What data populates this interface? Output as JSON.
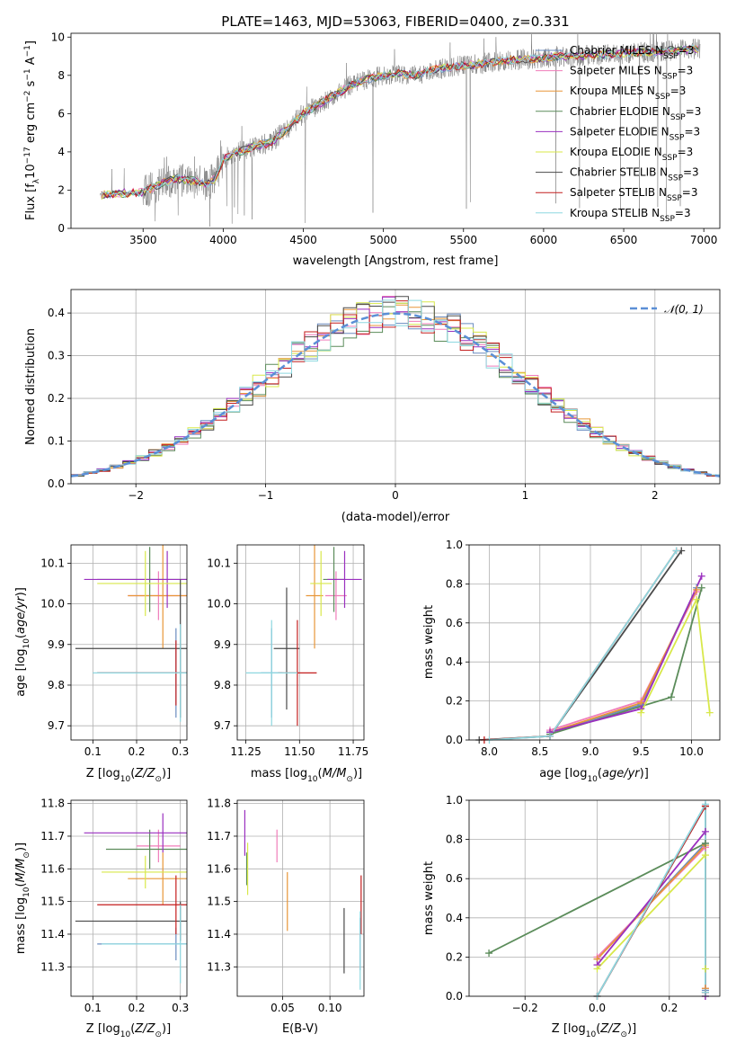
{
  "title": "PLATE=1463, MJD=53063, FIBERID=0400, z=0.331",
  "colors": {
    "Chabrier MILES": "#6a8cc0",
    "Salpeter MILES": "#f07dba",
    "Kroupa MILES": "#e89638",
    "Chabrier ELODIE": "#5b8c5a",
    "Salpeter ELODIE": "#9a2fbf",
    "Kroupa ELODIE": "#d8e84a",
    "Chabrier STELIB": "#4a4a4a",
    "Salpeter STELIB": "#c41e1e",
    "Kroupa STELIB": "#8ed8e0",
    "data": "#808080",
    "normal": "#5b8fd6"
  },
  "chart_data": [
    {
      "id": "spectrum",
      "type": "line",
      "xlabel": "wavelength [Angstrom, rest frame]",
      "ylabel": "Flux [f_λ10^-17 erg cm^-2 s^-1 A^-1]",
      "xlim": [
        3050,
        7100
      ],
      "ylim": [
        0,
        10.2
      ],
      "xticks": [
        3500,
        4000,
        4500,
        5000,
        5500,
        6000,
        6500,
        7000
      ],
      "yticks": [
        0,
        2,
        4,
        6,
        8,
        10
      ],
      "continuum": [
        [
          3230,
          1.7
        ],
        [
          3300,
          1.8
        ],
        [
          3400,
          1.85
        ],
        [
          3500,
          1.9
        ],
        [
          3600,
          2.3
        ],
        [
          3700,
          2.6
        ],
        [
          3800,
          2.5
        ],
        [
          3900,
          2.3
        ],
        [
          3950,
          2.6
        ],
        [
          4000,
          3.6
        ],
        [
          4100,
          4.0
        ],
        [
          4200,
          4.3
        ],
        [
          4300,
          4.5
        ],
        [
          4400,
          5.2
        ],
        [
          4500,
          6.0
        ],
        [
          4600,
          6.5
        ],
        [
          4700,
          7.0
        ],
        [
          4800,
          7.5
        ],
        [
          4900,
          7.8
        ],
        [
          5000,
          8.0
        ],
        [
          5100,
          8.1
        ],
        [
          5200,
          8.0
        ],
        [
          5300,
          8.3
        ],
        [
          5400,
          8.4
        ],
        [
          5500,
          8.5
        ],
        [
          5600,
          8.6
        ],
        [
          5700,
          8.7
        ],
        [
          5800,
          8.8
        ],
        [
          5900,
          8.85
        ],
        [
          6000,
          8.9
        ],
        [
          6100,
          9.0
        ],
        [
          6200,
          9.0
        ],
        [
          6300,
          9.05
        ],
        [
          6400,
          9.1
        ],
        [
          6500,
          9.15
        ],
        [
          6600,
          9.2
        ],
        [
          6700,
          9.2
        ],
        [
          6800,
          9.3
        ],
        [
          6900,
          9.35
        ],
        [
          6980,
          9.4
        ]
      ],
      "legend": [
        {
          "name": "Chabrier MILES",
          "sup": "N",
          "sub": "SSP",
          "eq": "=3"
        },
        {
          "name": "Salpeter MILES",
          "sup": "N",
          "sub": "SSP",
          "eq": "=3"
        },
        {
          "name": "Kroupa MILES",
          "sup": "N",
          "sub": "SSP",
          "eq": "=3"
        },
        {
          "name": "Chabrier ELODIE",
          "sup": "N",
          "sub": "SSP",
          "eq": "=3"
        },
        {
          "name": "Salpeter ELODIE",
          "sup": "N",
          "sub": "SSP",
          "eq": "=3"
        },
        {
          "name": "Kroupa ELODIE",
          "sup": "N",
          "sub": "SSP",
          "eq": "=3"
        },
        {
          "name": "Chabrier STELIB",
          "sup": "N",
          "sub": "SSP",
          "eq": "=3"
        },
        {
          "name": "Salpeter STELIB",
          "sup": "N",
          "sub": "SSP",
          "eq": "=3"
        },
        {
          "name": "Kroupa STELIB",
          "sup": "N",
          "sub": "SSP",
          "eq": "=3"
        }
      ]
    },
    {
      "id": "residuals",
      "type": "line",
      "xlabel": "(data-model)/error",
      "ylabel": "Normed distribution",
      "xlim": [
        -2.5,
        2.5
      ],
      "ylim": [
        0,
        0.455
      ],
      "xticks": [
        -2,
        -1,
        0,
        1,
        2
      ],
      "yticks": [
        0.0,
        0.1,
        0.2,
        0.3,
        0.4
      ],
      "legend": "𝒩(0, 1)",
      "bin_width": 0.1
    },
    {
      "id": "age_vs_Z",
      "type": "scatter",
      "xlabel": "Z [log10(Z/Z⊙)]",
      "ylabel": "age [log10(age/yr)]",
      "xlim": [
        0.05,
        0.315
      ],
      "ylim": [
        9.665,
        10.145
      ],
      "xticks": [
        0.1,
        0.2,
        0.3
      ],
      "yticks": [
        9.7,
        9.8,
        9.9,
        10.0,
        10.1
      ],
      "points": [
        {
          "model": "Chabrier MILES",
          "x": 0.29,
          "y": 9.83,
          "xerr": 0.18,
          "yerr": 0.11
        },
        {
          "model": "Salpeter MILES",
          "x": 0.25,
          "y": 10.02,
          "xerr": 0.07,
          "yerr": 0.06
        },
        {
          "model": "Kroupa MILES",
          "x": 0.26,
          "y": 10.02,
          "xerr": 0.08,
          "yerr": 0.13
        },
        {
          "model": "Chabrier ELODIE",
          "x": 0.23,
          "y": 10.06,
          "xerr": 0.12,
          "yerr": 0.08
        },
        {
          "model": "Salpeter ELODIE",
          "x": 0.27,
          "y": 10.06,
          "xerr": 0.19,
          "yerr": 0.07
        },
        {
          "model": "Kroupa ELODIE",
          "x": 0.22,
          "y": 10.05,
          "xerr": 0.11,
          "yerr": 0.08
        },
        {
          "model": "Chabrier STELIB",
          "x": 0.3,
          "y": 9.89,
          "xerr": 0.24,
          "yerr": 0.17
        },
        {
          "model": "Salpeter STELIB",
          "x": 0.29,
          "y": 9.83,
          "xerr": 0.18,
          "yerr": 0.08
        },
        {
          "model": "Kroupa STELIB",
          "x": 0.3,
          "y": 9.83,
          "xerr": 0.2,
          "yerr": 0.12
        }
      ]
    },
    {
      "id": "age_vs_mass",
      "type": "scatter",
      "xlabel": "mass [log10(M/M⊙)]",
      "ylabel": "",
      "xlim": [
        11.21,
        11.8
      ],
      "ylim": [
        9.665,
        10.145
      ],
      "xticks": [
        11.25,
        11.5,
        11.75
      ],
      "yticks": [
        9.7,
        9.8,
        9.9,
        10.0,
        10.1
      ],
      "points": [
        {
          "model": "Chabrier MILES",
          "x": 11.37,
          "y": 9.83,
          "xerr": 0.05,
          "yerr": 0.11
        },
        {
          "model": "Salpeter MILES",
          "x": 11.67,
          "y": 10.02,
          "xerr": 0.05,
          "yerr": 0.06
        },
        {
          "model": "Kroupa MILES",
          "x": 11.57,
          "y": 10.02,
          "xerr": 0.04,
          "yerr": 0.13
        },
        {
          "model": "Chabrier ELODIE",
          "x": 11.66,
          "y": 10.06,
          "xerr": 0.05,
          "yerr": 0.08
        },
        {
          "model": "Salpeter ELODIE",
          "x": 11.71,
          "y": 10.06,
          "xerr": 0.08,
          "yerr": 0.07
        },
        {
          "model": "Kroupa ELODIE",
          "x": 11.6,
          "y": 10.05,
          "xerr": 0.05,
          "yerr": 0.08
        },
        {
          "model": "Chabrier STELIB",
          "x": 11.44,
          "y": 9.89,
          "xerr": 0.06,
          "yerr": 0.15
        },
        {
          "model": "Salpeter STELIB",
          "x": 11.49,
          "y": 9.83,
          "xerr": 0.09,
          "yerr": 0.13
        },
        {
          "model": "Kroupa STELIB",
          "x": 11.37,
          "y": 9.83,
          "xerr": 0.12,
          "yerr": 0.13
        }
      ]
    },
    {
      "id": "mass_weight_vs_age",
      "type": "line",
      "xlabel": "age [log10(age/yr)]",
      "ylabel": "mass weight",
      "xlim": [
        7.8,
        10.28
      ],
      "ylim": [
        0,
        1.0
      ],
      "xticks": [
        8.0,
        8.5,
        9.0,
        9.5,
        10.0
      ],
      "yticks": [
        0.0,
        0.2,
        0.4,
        0.6,
        0.8,
        1.0
      ],
      "series": [
        {
          "model": "Chabrier MILES",
          "x": [
            8.6,
            9.5,
            10.05
          ],
          "y": [
            0.04,
            0.18,
            0.78
          ]
        },
        {
          "model": "Salpeter MILES",
          "x": [
            8.6,
            9.5,
            10.05
          ],
          "y": [
            0.05,
            0.2,
            0.76
          ]
        },
        {
          "model": "Kroupa MILES",
          "x": [
            8.6,
            9.5,
            10.05
          ],
          "y": [
            0.04,
            0.19,
            0.77
          ]
        },
        {
          "model": "Chabrier ELODIE",
          "x": [
            8.6,
            9.8,
            10.1
          ],
          "y": [
            0.03,
            0.22,
            0.78
          ]
        },
        {
          "model": "Salpeter ELODIE",
          "x": [
            8.6,
            9.5,
            10.1
          ],
          "y": [
            0.04,
            0.16,
            0.84
          ]
        },
        {
          "model": "Kroupa ELODIE",
          "x": [
            9.5,
            10.05,
            10.18
          ],
          "y": [
            0.14,
            0.72,
            0.14
          ]
        },
        {
          "model": "Chabrier STELIB",
          "x": [
            7.9,
            8.6,
            9.9
          ],
          "y": [
            0.0,
            0.02,
            0.97
          ]
        },
        {
          "model": "Salpeter STELIB",
          "x": [
            7.95,
            8.6,
            9.85
          ],
          "y": [
            0.0,
            0.02,
            0.97
          ]
        },
        {
          "model": "Kroupa STELIB",
          "x": [
            8.0,
            8.6,
            9.85
          ],
          "y": [
            0.0,
            0.02,
            0.97
          ]
        }
      ]
    },
    {
      "id": "mass_vs_Z",
      "type": "scatter",
      "xlabel": "Z [log10(Z/Z⊙)]",
      "ylabel": "mass [log10(M/M⊙)]",
      "xlim": [
        0.05,
        0.315
      ],
      "ylim": [
        11.21,
        11.81
      ],
      "xticks": [
        0.1,
        0.2,
        0.3
      ],
      "yticks": [
        11.3,
        11.4,
        11.5,
        11.6,
        11.7,
        11.8
      ],
      "points": [
        {
          "model": "Chabrier MILES",
          "x": 0.29,
          "y": 11.37,
          "xerr": 0.18,
          "yerr": 0.05
        },
        {
          "model": "Salpeter MILES",
          "x": 0.25,
          "y": 11.67,
          "xerr": 0.05,
          "yerr": 0.05
        },
        {
          "model": "Kroupa MILES",
          "x": 0.26,
          "y": 11.57,
          "xerr": 0.08,
          "yerr": 0.08
        },
        {
          "model": "Chabrier ELODIE",
          "x": 0.23,
          "y": 11.66,
          "xerr": 0.1,
          "yerr": 0.06
        },
        {
          "model": "Salpeter ELODIE",
          "x": 0.26,
          "y": 11.71,
          "xerr": 0.18,
          "yerr": 0.06
        },
        {
          "model": "Kroupa ELODIE",
          "x": 0.22,
          "y": 11.59,
          "xerr": 0.1,
          "yerr": 0.05
        },
        {
          "model": "Chabrier STELIB",
          "x": 0.3,
          "y": 11.44,
          "xerr": 0.24,
          "yerr": 0.06
        },
        {
          "model": "Salpeter STELIB",
          "x": 0.29,
          "y": 11.49,
          "xerr": 0.18,
          "yerr": 0.09
        },
        {
          "model": "Kroupa STELIB",
          "x": 0.3,
          "y": 11.37,
          "xerr": 0.18,
          "yerr": 0.12
        }
      ]
    },
    {
      "id": "mass_vs_ebv",
      "type": "scatter",
      "xlabel": "E(B-V)",
      "ylabel": "",
      "xlim": [
        0.002,
        0.136
      ],
      "ylim": [
        11.21,
        11.81
      ],
      "xticks": [
        0.05,
        0.1
      ],
      "yticks": [
        11.3,
        11.4,
        11.5,
        11.6,
        11.7,
        11.8
      ],
      "points": [
        {
          "model": "Chabrier MILES",
          "x": 0.132,
          "y": 11.37,
          "yerr": 0.08
        },
        {
          "model": "Salpeter MILES",
          "x": 0.044,
          "y": 11.67,
          "yerr": 0.05
        },
        {
          "model": "Kroupa MILES",
          "x": 0.055,
          "y": 11.5,
          "yerr": 0.09
        },
        {
          "model": "Chabrier ELODIE",
          "x": 0.012,
          "y": 11.6,
          "yerr": 0.05
        },
        {
          "model": "Salpeter ELODIE",
          "x": 0.01,
          "y": 11.71,
          "yerr": 0.07
        },
        {
          "model": "Kroupa ELODIE",
          "x": 0.013,
          "y": 11.6,
          "yerr": 0.08
        },
        {
          "model": "Chabrier STELIB",
          "x": 0.115,
          "y": 11.38,
          "yerr": 0.1
        },
        {
          "model": "Salpeter STELIB",
          "x": 0.133,
          "y": 11.49,
          "yerr": 0.09
        },
        {
          "model": "Kroupa STELIB",
          "x": 0.132,
          "y": 11.35,
          "yerr": 0.12
        }
      ]
    },
    {
      "id": "mass_weight_vs_Z",
      "type": "line",
      "xlabel": "Z [log10(Z/Z⊙)]",
      "ylabel": "mass weight",
      "xlim": [
        -0.355,
        0.34
      ],
      "ylim": [
        0,
        1.0
      ],
      "xticks": [
        -0.2,
        0.0,
        0.2
      ],
      "yticks": [
        0.0,
        0.2,
        0.4,
        0.6,
        0.8,
        1.0
      ],
      "series": [
        {
          "model": "Chabrier MILES",
          "x": [
            0.0,
            0.3,
            0.3
          ],
          "y": [
            0.19,
            0.78,
            0.03
          ]
        },
        {
          "model": "Salpeter MILES",
          "x": [
            0.0,
            0.3,
            0.3
          ],
          "y": [
            0.2,
            0.76,
            0.04
          ]
        },
        {
          "model": "Kroupa MILES",
          "x": [
            0.0,
            0.3,
            0.3
          ],
          "y": [
            0.19,
            0.77,
            0.04
          ]
        },
        {
          "model": "Chabrier ELODIE",
          "x": [
            -0.3,
            0.3,
            0.3
          ],
          "y": [
            0.22,
            0.78,
            0.0
          ]
        },
        {
          "model": "Salpeter ELODIE",
          "x": [
            0.0,
            0.3,
            0.3
          ],
          "y": [
            0.16,
            0.84,
            0.0
          ]
        },
        {
          "model": "Kroupa ELODIE",
          "x": [
            0.0,
            0.3,
            0.3
          ],
          "y": [
            0.14,
            0.72,
            0.14
          ]
        },
        {
          "model": "Chabrier STELIB",
          "x": [
            0.0,
            0.3,
            0.3
          ],
          "y": [
            0.0,
            0.97,
            0.02
          ]
        },
        {
          "model": "Salpeter STELIB",
          "x": [
            0.0,
            0.3,
            0.3
          ],
          "y": [
            0.0,
            0.97,
            0.02
          ]
        },
        {
          "model": "Kroupa STELIB",
          "x": [
            0.0,
            0.3,
            0.3
          ],
          "y": [
            0.0,
            0.98,
            0.02
          ]
        }
      ]
    }
  ]
}
